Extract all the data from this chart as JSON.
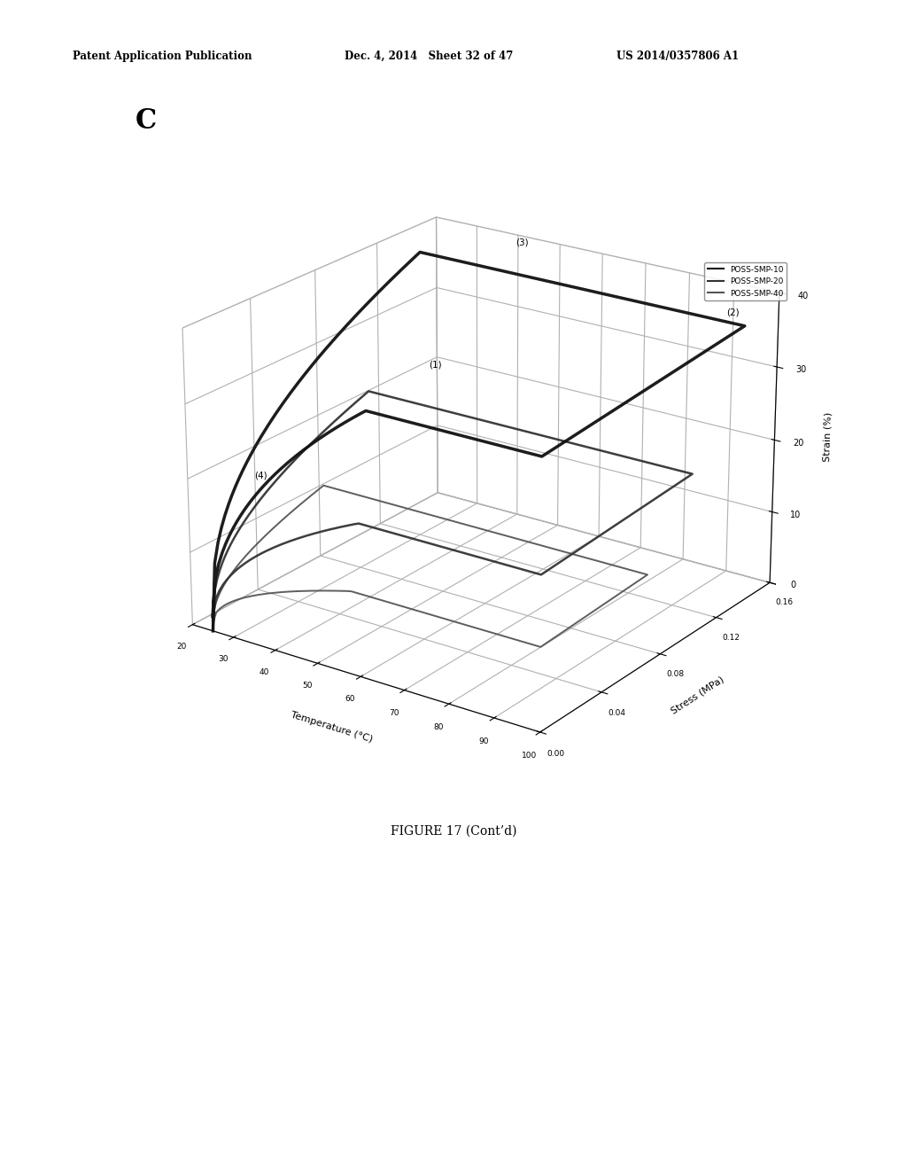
{
  "header_left": "Patent Application Publication",
  "header_mid": "Dec. 4, 2014   Sheet 32 of 47",
  "header_right": "US 2014/0357806 A1",
  "panel_label": "C",
  "figure_caption": "FIGURE 17 (Cont’d)",
  "xlabel": "Temperature (°C)",
  "ylabel": "Stress (MPa)",
  "zlabel": "Strain (%)",
  "xlim": [
    20,
    100
  ],
  "ylim": [
    0.0,
    0.16
  ],
  "zlim": [
    0,
    40
  ],
  "xticks": [
    20,
    30,
    40,
    50,
    60,
    70,
    80,
    90,
    100
  ],
  "yticks": [
    0.0,
    0.04,
    0.08,
    0.12,
    0.16
  ],
  "zticks": [
    0,
    10,
    20,
    30,
    40
  ],
  "legend_entries": [
    "POSS-SMP-10",
    "POSS-SMP-20",
    "POSS-SMP-40"
  ],
  "background_color": "#ffffff",
  "elev": 22,
  "azim": -55,
  "curve_colors": [
    "#111111",
    "#333333",
    "#555555"
  ],
  "curve_lws": [
    2.5,
    1.8,
    1.4
  ]
}
